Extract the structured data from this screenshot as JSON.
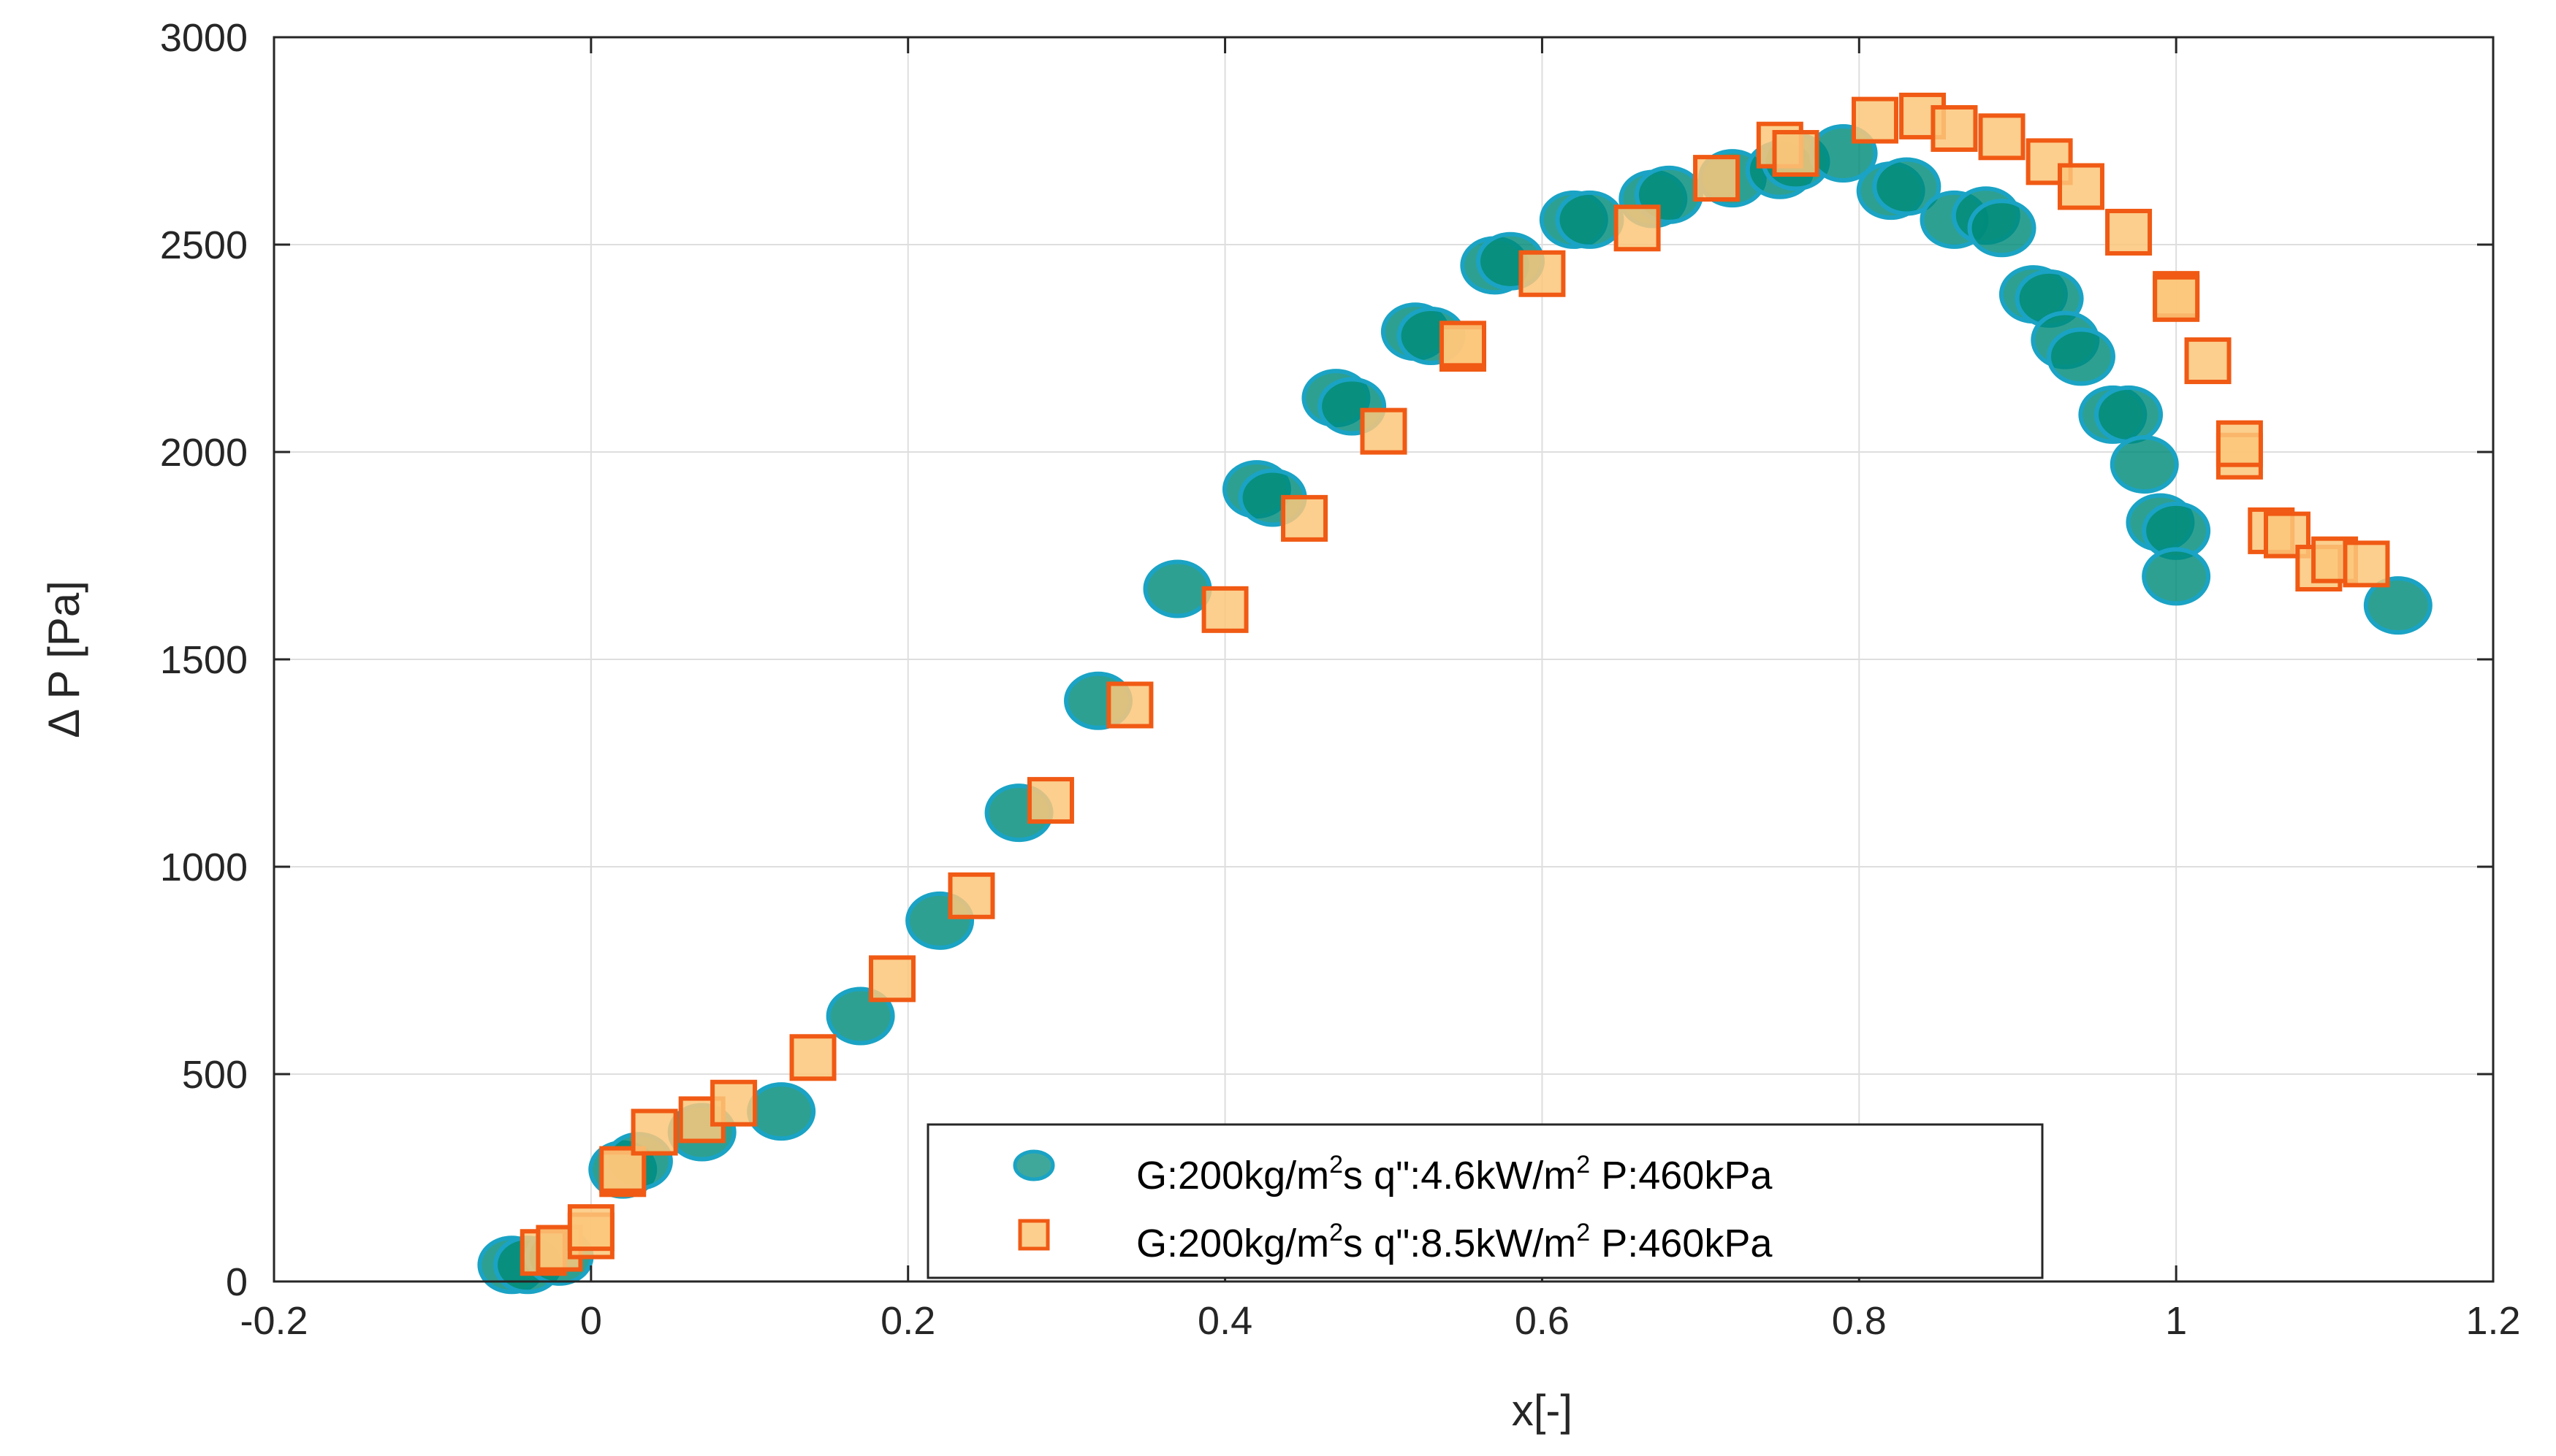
{
  "chart_data": {
    "type": "scatter",
    "title": "",
    "xlabel": "x[-]",
    "ylabel": "Δ P [Pa]",
    "xlim": [
      -0.2,
      1.2
    ],
    "ylim": [
      0,
      3000
    ],
    "x_ticks": [
      -0.2,
      0,
      0.2,
      0.4,
      0.6,
      0.8,
      1,
      1.2
    ],
    "x_tick_labels": [
      "-0.2",
      "0",
      "0.2",
      "0.4",
      "0.6",
      "0.8",
      "1",
      "1.2"
    ],
    "y_ticks": [
      0,
      500,
      1000,
      1500,
      2000,
      2500,
      3000
    ],
    "y_tick_labels": [
      "0",
      "500",
      "1000",
      "1500",
      "2000",
      "2500",
      "3000"
    ],
    "grid": true,
    "legend_position": "bottom-right",
    "series": [
      {
        "name": "G:200kg/m²s q\":4.6kW/m² P:460kPa",
        "legend": {
          "pre": "G:200kg/m",
          "sup1": "2",
          "mid": "s q\":4.6kW/m",
          "sup2": "2",
          "post": " P:460kPa"
        },
        "marker": "circle",
        "color": "#008b7a",
        "edge_color": "#1aa3c4",
        "x": [
          -0.05,
          -0.04,
          -0.02,
          0.02,
          0.03,
          0.07,
          0.12,
          0.17,
          0.22,
          0.27,
          0.32,
          0.37,
          0.42,
          0.43,
          0.47,
          0.48,
          0.52,
          0.53,
          0.57,
          0.58,
          0.62,
          0.63,
          0.67,
          0.68,
          0.72,
          0.75,
          0.76,
          0.79,
          0.82,
          0.83,
          0.86,
          0.88,
          0.89,
          0.91,
          0.92,
          0.93,
          0.94,
          0.96,
          0.97,
          0.98,
          0.99,
          1.0,
          1.0,
          1.14
        ],
        "y": [
          40,
          40,
          60,
          270,
          290,
          360,
          410,
          640,
          870,
          1130,
          1400,
          1670,
          1910,
          1890,
          2130,
          2110,
          2290,
          2280,
          2450,
          2460,
          2560,
          2560,
          2610,
          2620,
          2660,
          2680,
          2700,
          2720,
          2630,
          2640,
          2560,
          2570,
          2540,
          2380,
          2370,
          2270,
          2230,
          2090,
          2090,
          1970,
          1830,
          1810,
          1700,
          1630
        ]
      },
      {
        "name": "G:200kg/m²s q\":8.5kW/m² P:460kPa",
        "legend": {
          "pre": "G:200kg/m",
          "sup1": "2",
          "mid": "s q\":8.5kW/m",
          "sup2": "2",
          "post": " P:460kPa"
        },
        "marker": "square",
        "color": "#fcc77a",
        "edge_color": "#f05a14",
        "x": [
          -0.03,
          -0.02,
          0.0,
          0.0,
          0.02,
          0.02,
          0.04,
          0.07,
          0.09,
          0.14,
          0.19,
          0.24,
          0.29,
          0.34,
          0.4,
          0.45,
          0.5,
          0.55,
          0.55,
          0.6,
          0.66,
          0.71,
          0.75,
          0.76,
          0.81,
          0.84,
          0.86,
          0.89,
          0.92,
          0.94,
          0.97,
          1.0,
          1.0,
          1.02,
          1.04,
          1.04,
          1.06,
          1.07,
          1.09,
          1.1,
          1.12
        ],
        "y": [
          70,
          80,
          110,
          130,
          260,
          270,
          360,
          390,
          430,
          540,
          730,
          930,
          1160,
          1390,
          1620,
          1840,
          2050,
          2250,
          2260,
          2430,
          2540,
          2660,
          2740,
          2720,
          2800,
          2810,
          2780,
          2760,
          2700,
          2640,
          2530,
          2380,
          2370,
          2220,
          1990,
          2020,
          1810,
          1800,
          1720,
          1740,
          1730
        ]
      }
    ]
  }
}
